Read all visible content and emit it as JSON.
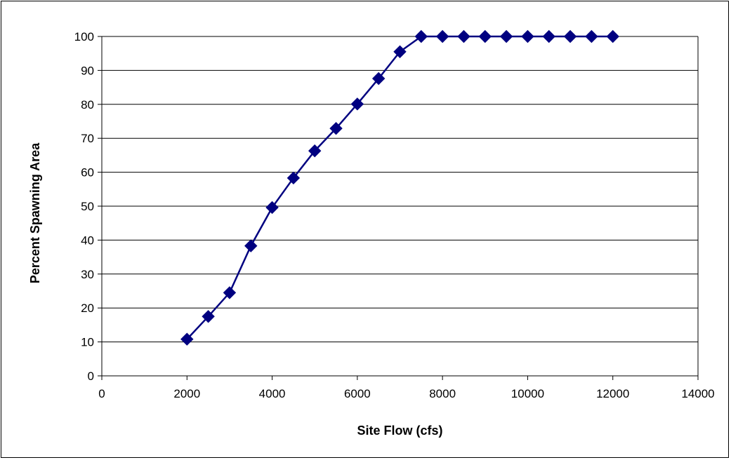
{
  "chart_data": {
    "type": "line",
    "title": "",
    "xlabel": "Site Flow (cfs)",
    "ylabel": "Percent Spawning Area",
    "xlim": [
      0,
      14000
    ],
    "ylim": [
      0,
      100
    ],
    "x_ticks": [
      "0",
      "2000",
      "4000",
      "6000",
      "8000",
      "10000",
      "12000",
      "14000"
    ],
    "y_ticks": [
      "0",
      "10",
      "20",
      "30",
      "40",
      "50",
      "60",
      "70",
      "80",
      "90",
      "100"
    ],
    "grid": "horizontal",
    "legend": "none",
    "marker": "diamond",
    "series": [
      {
        "color": "#000080",
        "x": [
          2000,
          2500,
          3000,
          3500,
          4000,
          4500,
          5000,
          5500,
          6000,
          6500,
          7000,
          7500,
          8000,
          8500,
          9000,
          9500,
          10000,
          10500,
          11000,
          11500,
          12000
        ],
        "values": [
          10.8,
          17.5,
          24.5,
          38.3,
          49.6,
          58.3,
          66.3,
          72.9,
          80.1,
          87.6,
          95.5,
          100,
          100,
          100,
          100,
          100,
          100,
          100,
          100,
          100,
          100
        ]
      }
    ]
  }
}
